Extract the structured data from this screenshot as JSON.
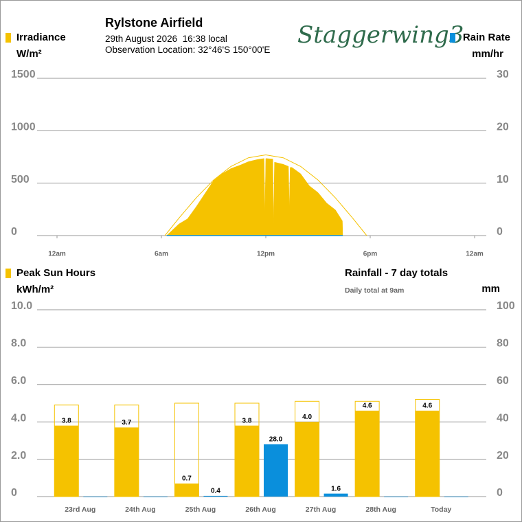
{
  "header": {
    "title": "Rylstone Airfield",
    "datetime": "29th August 2026  16:38 local",
    "location": "Observation Location: 32°46'S 150°00'E",
    "logo": "Staggerwing3"
  },
  "chart_data": [
    {
      "type": "area",
      "ytitle": "Irradiance",
      "ylabel": "W/m²",
      "y2title": "Rain Rate",
      "y2label": "mm/hr",
      "x": [
        6.3,
        7,
        7.5,
        8,
        8.5,
        9,
        9.5,
        10,
        10.5,
        11,
        11.5,
        11.9,
        11.95,
        12,
        12.4,
        12.45,
        12.5,
        13,
        13.3,
        13.35,
        13.4,
        13.5,
        14,
        14.5,
        15,
        15.5,
        16,
        16.4,
        16.42
      ],
      "xlim": [
        0,
        24
      ],
      "xticks": [
        {
          "value": 0,
          "label": "12am"
        },
        {
          "value": 6,
          "label": "6am"
        },
        {
          "value": 12,
          "label": "12pm"
        },
        {
          "value": 18,
          "label": "6pm"
        },
        {
          "value": 24,
          "label": "12am"
        }
      ],
      "ylim": [
        0,
        1500
      ],
      "yticks": [
        0,
        500,
        1000,
        1500
      ],
      "y2lim": [
        0,
        30
      ],
      "y2ticks": [
        0,
        10,
        20,
        30
      ],
      "grid": true,
      "series": [
        {
          "name": "Irradiance",
          "color": "#f5c200",
          "values": [
            0,
            110,
            160,
            275,
            400,
            525,
            590,
            640,
            670,
            705,
            725,
            735,
            200,
            735,
            730,
            100,
            700,
            680,
            660,
            250,
            650,
            650,
            590,
            475,
            410,
            310,
            245,
            140,
            0
          ]
        },
        {
          "name": "Rain Rate",
          "color": "#0a8fdc",
          "axis": "y2",
          "values": [
            0,
            0,
            0,
            0,
            0,
            0,
            0,
            0,
            0,
            0,
            0,
            0,
            0,
            0,
            0,
            0,
            0,
            0,
            0,
            0,
            0,
            0,
            0,
            0,
            0,
            0,
            0,
            0,
            0
          ]
        }
      ],
      "envelope": {
        "color": "#f5c200",
        "x": [
          6.2,
          7,
          8,
          9,
          10,
          11,
          12,
          13,
          14,
          15,
          16,
          17,
          17.8
        ],
        "values": [
          0,
          165,
          360,
          530,
          660,
          742,
          770,
          742,
          660,
          530,
          360,
          165,
          0
        ]
      }
    },
    {
      "type": "bar",
      "ytitle": "Peak Sun Hours",
      "ylabel": "kWh/m²",
      "y2title": "Rainfall - 7 day totals",
      "y2note": "Daily total at 9am",
      "y2label": "mm",
      "categories": [
        "23rd Aug",
        "24th Aug",
        "25th Aug",
        "26th Aug",
        "27th Aug",
        "28th Aug",
        "Today"
      ],
      "ylim": [
        0,
        10
      ],
      "yticks": [
        0,
        {
          "value": 2,
          "label": "2.0"
        },
        {
          "value": 4,
          "label": "4.0"
        },
        {
          "value": 6,
          "label": "6.0"
        },
        {
          "value": 8,
          "label": "8.0"
        },
        {
          "value": 10,
          "label": "10.0"
        }
      ],
      "y2lim": [
        0,
        100
      ],
      "y2ticks": [
        0,
        20,
        40,
        60,
        80,
        100
      ],
      "grid": true,
      "series": [
        {
          "color": "#f5c200",
          "outline": true,
          "values": [
            4.9,
            4.9,
            5.0,
            5.0,
            5.1,
            5.1,
            5.2
          ]
        },
        {
          "name": "Peak Sun Hours",
          "color": "#f5c200",
          "values": [
            3.8,
            3.7,
            0.7,
            3.8,
            4.0,
            4.6,
            4.6
          ],
          "value_labels": [
            "3.8",
            "3.7",
            "0.7",
            "3.8",
            "4.0",
            "4.6",
            "4.6"
          ]
        },
        {
          "name": "Rainfall - 7 day totals",
          "color": "#0a8fdc",
          "axis": "y2",
          "values": [
            0,
            0,
            0.4,
            28.0,
            1.6,
            0,
            0
          ],
          "value_labels": [
            null,
            null,
            "0.4",
            "28.0",
            "1.6",
            null,
            null
          ]
        }
      ]
    }
  ]
}
